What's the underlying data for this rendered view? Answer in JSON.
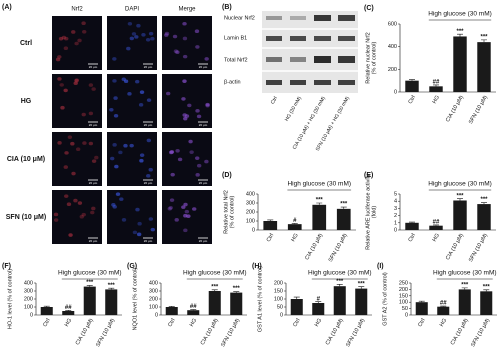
{
  "panel_a": {
    "label": "(A)",
    "columns": [
      "Nrf2",
      "DAPI",
      "Merge"
    ],
    "rows": [
      "Ctrl",
      "HG",
      "CIA (10 μM)",
      "SFN (10 μM)"
    ],
    "scale_bar": "20 μm"
  },
  "panel_b": {
    "label": "(B)",
    "bands": [
      "Nuclear Nrf2",
      "Lamin B1",
      "Total Nrf2",
      "β-actin"
    ],
    "lanes": [
      "Ctrl",
      "HG (30 mM)",
      "CIA (10 μM) + HG (30 mM)",
      "SFN (10 μM) + HG (30 mM)"
    ]
  },
  "chart_data": [
    {
      "panel_label": "(C)",
      "type": "bar",
      "ylabel": [
        "Relative nuclear Nrf2",
        "(% of control)"
      ],
      "annotation": "High glucose (30 mM)",
      "categories": [
        "Ctrl",
        "HG",
        "CIA (10 μM)",
        "SFN (10 μM)"
      ],
      "values": [
        100,
        50,
        490,
        440
      ],
      "errors": [
        10,
        12,
        20,
        20
      ],
      "significance": [
        null,
        "##",
        "***",
        "***"
      ],
      "color": "#1a1a1a",
      "ylim": [
        0,
        600
      ],
      "yticks": [
        0,
        200,
        400,
        600
      ]
    },
    {
      "panel_label": "(D)",
      "type": "bar",
      "ylabel": [
        "Relative total Nrf2",
        "(% of control)"
      ],
      "annotation": "High glucose (30 mM)",
      "categories": [
        "Ctrl",
        "HG",
        "CIA (10 μM)",
        "SFN (10 μM)"
      ],
      "values": [
        100,
        65,
        280,
        235
      ],
      "errors": [
        12,
        8,
        20,
        20
      ],
      "significance": [
        null,
        "#",
        "***",
        "***"
      ],
      "color": "#1a1a1a",
      "ylim": [
        0,
        400
      ],
      "yticks": [
        0,
        100,
        200,
        300,
        400
      ]
    },
    {
      "panel_label": "(E)",
      "type": "bar",
      "ylabel": [
        "Relative ARE luciferase activity",
        "(fold)"
      ],
      "annotation": "High glucose (30 mM)",
      "categories": [
        "Ctrl",
        "HG",
        "CIA (10 μM)",
        "SFN (10 μM)"
      ],
      "values": [
        1.0,
        0.6,
        4.1,
        3.6
      ],
      "errors": [
        0.1,
        0.1,
        0.25,
        0.2
      ],
      "significance": [
        null,
        "##",
        "***",
        "***"
      ],
      "color": "#1a1a1a",
      "ylim": [
        0,
        5
      ],
      "yticks": [
        0,
        1,
        2,
        3,
        4,
        5
      ]
    },
    {
      "panel_label": "(F)",
      "type": "bar",
      "ylabel": [
        "HO-1 level (% of control)"
      ],
      "annotation": "High glucose (30 mM)",
      "categories": [
        "Ctrl",
        "HG",
        "CIA (10 μM)",
        "SFN (10 μM)"
      ],
      "values": [
        100,
        50,
        355,
        320
      ],
      "errors": [
        10,
        8,
        15,
        15
      ],
      "significance": [
        null,
        "##",
        "***",
        "***"
      ],
      "color": "#1a1a1a",
      "ylim": [
        0,
        400
      ],
      "yticks": [
        0,
        100,
        200,
        300,
        400
      ]
    },
    {
      "panel_label": "(G)",
      "type": "bar",
      "ylabel": [
        "NQO1 level (% of control)"
      ],
      "annotation": "High glucose (30 mM)",
      "categories": [
        "Ctrl",
        "HG",
        "CIA (10 μM)",
        "SFN (10 μM)"
      ],
      "values": [
        100,
        60,
        300,
        280
      ],
      "errors": [
        8,
        8,
        15,
        12
      ],
      "significance": [
        null,
        "##",
        "***",
        "***"
      ],
      "color": "#1a1a1a",
      "ylim": [
        0,
        400
      ],
      "yticks": [
        0,
        100,
        200,
        300,
        400
      ]
    },
    {
      "panel_label": "(H)",
      "type": "bar",
      "ylabel": [
        "GST A1 level (% of control)"
      ],
      "annotation": "High glucose (30 mM)",
      "categories": [
        "Ctrl",
        "HG",
        "CIA (10 μM)",
        "SFN (10 μM)"
      ],
      "values": [
        100,
        75,
        180,
        165
      ],
      "errors": [
        12,
        8,
        12,
        12
      ],
      "significance": [
        null,
        "#",
        "***",
        "***"
      ],
      "color": "#1a1a1a",
      "ylim": [
        0,
        200
      ],
      "yticks": [
        0,
        50,
        100,
        150,
        200
      ]
    },
    {
      "panel_label": "(I)",
      "type": "bar",
      "ylabel": [
        "GST A2 (% of control)"
      ],
      "annotation": "High glucose (30 mM)",
      "categories": [
        "Ctrl",
        "HG",
        "CIA (10 μM)",
        "SFN (10 μM)"
      ],
      "values": [
        100,
        65,
        200,
        185
      ],
      "errors": [
        8,
        5,
        12,
        12
      ],
      "significance": [
        null,
        "##",
        "***",
        "***"
      ],
      "color": "#1a1a1a",
      "ylim": [
        0,
        250
      ],
      "yticks": [
        0,
        50,
        100,
        150,
        200,
        250
      ]
    }
  ]
}
